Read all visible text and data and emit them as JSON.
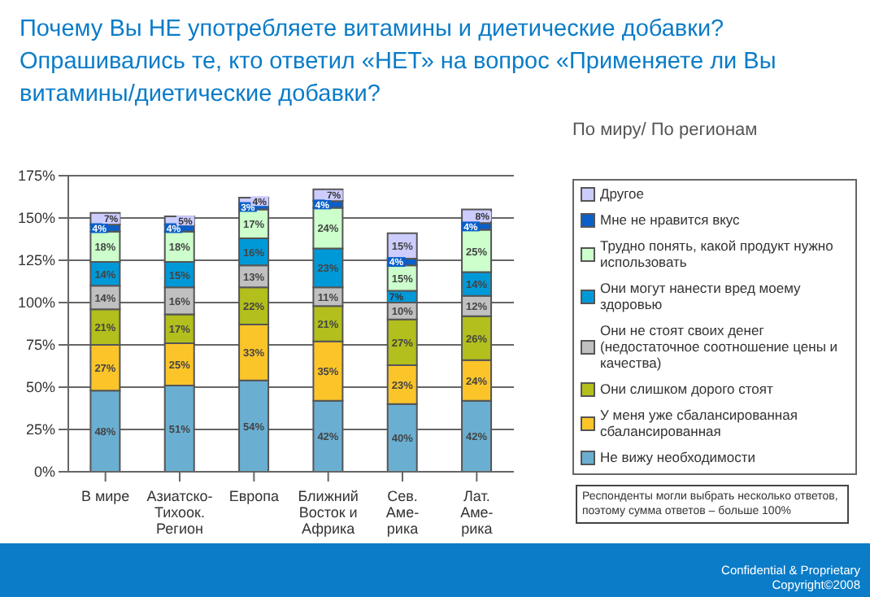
{
  "chart_data": {
    "type": "bar",
    "stacked": true,
    "title": "Почему Вы НЕ употребляете витамины и диетические добавки? Опрашивались те, кто ответил «НЕТ» на вопрос «Применяете ли Вы витамины/диетические добавки?",
    "legend_title": "По миру/ По регионам",
    "categories": [
      "В мире",
      "Азиатско-\nТихоок.\nРегион",
      "Европа",
      "Ближний\nВосток и\nАфрика",
      "Сев.\nАме-\nрика",
      "Лат.\nАме-\nрика"
    ],
    "series": [
      {
        "name": "Не вижу необходимости",
        "color": "#6aafd2",
        "values": [
          48,
          51,
          54,
          42,
          40,
          42
        ],
        "value_labels": [
          "48%",
          "51%",
          "54%",
          "42%",
          "40%",
          "42%"
        ]
      },
      {
        "name": "У меня уже сбалансированная сбалансированная",
        "color": "#fbc52a",
        "values": [
          27,
          25,
          33,
          35,
          23,
          24
        ],
        "value_labels": [
          "27%",
          "25%",
          "33%",
          "35%",
          "23%",
          "24%"
        ]
      },
      {
        "name": "Они слишком дорого стоят",
        "color": "#b2bf1c",
        "values": [
          21,
          17,
          22,
          21,
          27,
          26
        ],
        "value_labels": [
          "21%",
          "17%",
          "22%",
          "21%",
          "27%",
          "26%"
        ]
      },
      {
        "name": "Они не стоят своих денег (недостаточное соотношение цены и качества)",
        "color": "#c0c0c0",
        "values": [
          14,
          16,
          13,
          11,
          10,
          12
        ],
        "value_labels": [
          "14%",
          "16%",
          "13%",
          "11%",
          "10%",
          "12%"
        ]
      },
      {
        "name": "Они могут нанести вред моему здоровью",
        "color": "#0099d8",
        "values": [
          14,
          15,
          16,
          23,
          7,
          14
        ],
        "value_labels": [
          "14%",
          "15%",
          "16%",
          "23%",
          "7%",
          "14%"
        ]
      },
      {
        "name": "Трудно понять, какой продукт нужно использовать",
        "color": "#ccffcc",
        "values": [
          18,
          18,
          17,
          24,
          15,
          25
        ],
        "value_labels": [
          "18%",
          "18%",
          "17%",
          "24%",
          "15%",
          "25%"
        ]
      },
      {
        "name": "Мне не нравится вкус",
        "color": "#0a5fc8",
        "values": [
          4,
          4,
          3,
          4,
          4,
          4
        ],
        "value_labels": [
          "4%",
          "4%",
          "3%",
          "4%",
          "4%",
          "4%"
        ]
      },
      {
        "name": "Другое",
        "color": "#ccccff",
        "values": [
          7,
          5,
          4,
          7,
          15,
          8
        ],
        "value_labels": [
          "7%",
          "5%",
          "4%",
          "7%",
          "15%",
          "8%"
        ]
      }
    ],
    "ylim": [
      0,
      175
    ],
    "yticks": [
      {
        "value": 0,
        "label": "0%"
      },
      {
        "value": 25,
        "label": "25%"
      },
      {
        "value": 50,
        "label": "50%"
      },
      {
        "value": 75,
        "label": "75%"
      },
      {
        "value": 100,
        "label": "100%"
      },
      {
        "value": 125,
        "label": "125%"
      },
      {
        "value": 150,
        "label": "150%"
      },
      {
        "value": 175,
        "label": "175%"
      }
    ],
    "grid": "y",
    "legend": "right",
    "annotations": [
      "Респонденты могли выбрать несколько ответов, поэтому сумма ответов – больше 100%",
      "Confidential & Proprietary",
      "Copyright©2008"
    ]
  }
}
